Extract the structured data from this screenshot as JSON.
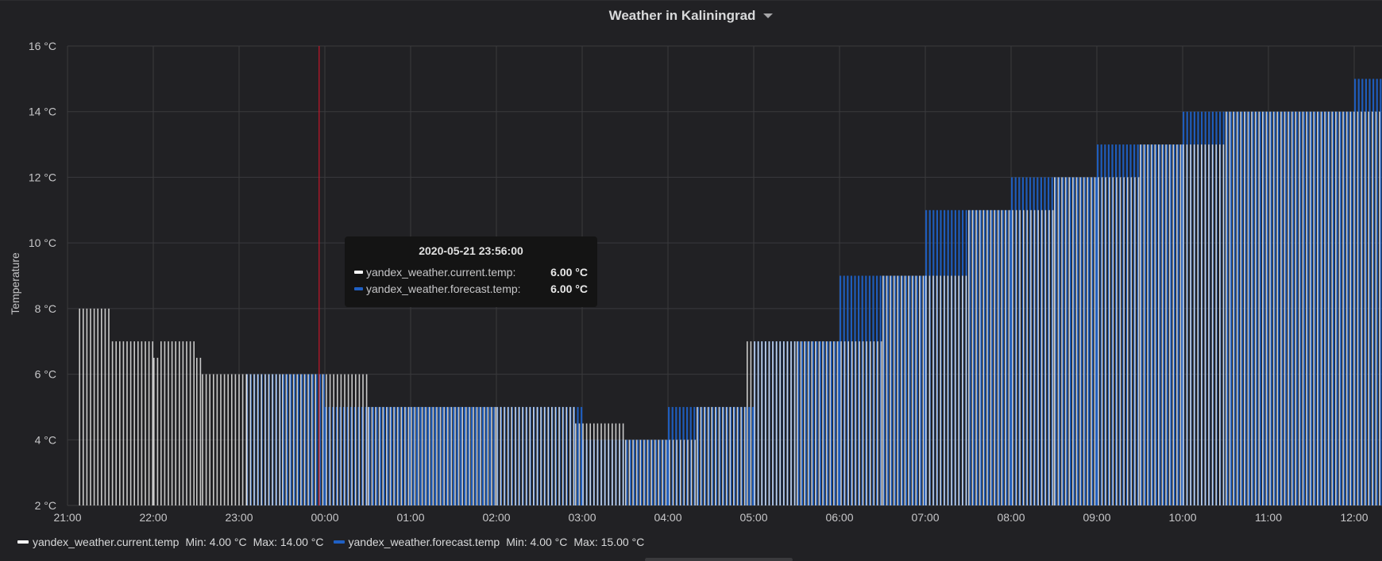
{
  "panel": {
    "title": "Weather in Kaliningrad"
  },
  "tooltip": {
    "time": "2020-05-21 23:56:00",
    "rows": [
      {
        "series": "yandex_weather.current.temp:",
        "value": "6.00 °C",
        "color": "#ffffff"
      },
      {
        "series": "yandex_weather.forecast.temp:",
        "value": "6.00 °C",
        "color": "#1f60c4"
      }
    ]
  },
  "legend": [
    {
      "name": "yandex_weather.current.temp",
      "min": "Min: 4.00 °C",
      "max": "Max: 14.00 °C",
      "color": "#ffffff"
    },
    {
      "name": "yandex_weather.forecast.temp",
      "min": "Min: 4.00 °C",
      "max": "Max: 15.00 °C",
      "color": "#1f60c4"
    }
  ],
  "chart_data": {
    "type": "bar",
    "title": "Weather in Kaliningrad",
    "ylabel": "Temperature",
    "xlabel": "",
    "ylim": [
      2,
      16
    ],
    "y_ticks": [
      "2 °C",
      "4 °C",
      "6 °C",
      "8 °C",
      "10 °C",
      "12 °C",
      "14 °C",
      "16 °C"
    ],
    "x_ticks": [
      "21:00",
      "22:00",
      "23:00",
      "00:00",
      "01:00",
      "02:00",
      "03:00",
      "04:00",
      "05:00",
      "06:00",
      "07:00",
      "08:00",
      "09:00",
      "10:00",
      "11:00",
      "12:00"
    ],
    "x_unit_note": "hours from 21:00",
    "grid": true,
    "cursor_time": "23:56",
    "series": [
      {
        "name": "yandex_weather.current.temp",
        "color": "#ffffff",
        "segments": [
          {
            "from": "21:08",
            "to": "21:31",
            "value": 8
          },
          {
            "from": "21:31",
            "to": "22:00",
            "value": 7
          },
          {
            "from": "22:00",
            "to": "22:05",
            "value": 6.5
          },
          {
            "from": "22:05",
            "to": "22:30",
            "value": 7
          },
          {
            "from": "22:30",
            "to": "22:34",
            "value": 6.5
          },
          {
            "from": "22:34",
            "to": "23:05",
            "value": 6
          },
          {
            "from": "23:05",
            "to": "23:30",
            "value": 6
          },
          {
            "from": "23:30",
            "to": "00:30",
            "value": 6
          },
          {
            "from": "00:30",
            "to": "01:00",
            "value": 5
          },
          {
            "from": "01:00",
            "to": "02:00",
            "value": 5
          },
          {
            "from": "02:00",
            "to": "02:55",
            "value": 5
          },
          {
            "from": "02:55",
            "to": "03:30",
            "value": 4.5
          },
          {
            "from": "03:30",
            "to": "04:20",
            "value": 4
          },
          {
            "from": "04:20",
            "to": "04:55",
            "value": 5
          },
          {
            "from": "04:55",
            "to": "05:30",
            "value": 7
          },
          {
            "from": "05:30",
            "to": "06:30",
            "value": 7
          },
          {
            "from": "06:30",
            "to": "07:00",
            "value": 9
          },
          {
            "from": "07:00",
            "to": "07:30",
            "value": 9
          },
          {
            "from": "07:30",
            "to": "08:30",
            "value": 11
          },
          {
            "from": "08:30",
            "to": "09:30",
            "value": 12
          },
          {
            "from": "09:30",
            "to": "10:00",
            "value": 13
          },
          {
            "from": "10:00",
            "to": "10:30",
            "value": 13
          },
          {
            "from": "10:30",
            "to": "12:20",
            "value": 14
          }
        ]
      },
      {
        "name": "yandex_weather.forecast.temp",
        "color": "#1f60c4",
        "segments": [
          {
            "from": "23:05",
            "to": "00:00",
            "value": 6
          },
          {
            "from": "00:00",
            "to": "03:00",
            "value": 5
          },
          {
            "from": "03:00",
            "to": "04:00",
            "value": 4
          },
          {
            "from": "04:00",
            "to": "05:00",
            "value": 5
          },
          {
            "from": "05:00",
            "to": "06:00",
            "value": 7
          },
          {
            "from": "06:00",
            "to": "07:00",
            "value": 9
          },
          {
            "from": "07:00",
            "to": "08:00",
            "value": 11
          },
          {
            "from": "08:00",
            "to": "09:00",
            "value": 12
          },
          {
            "from": "09:00",
            "to": "10:00",
            "value": 13
          },
          {
            "from": "10:00",
            "to": "12:00",
            "value": 14
          },
          {
            "from": "12:00",
            "to": "12:20",
            "value": 15
          }
        ]
      }
    ]
  }
}
